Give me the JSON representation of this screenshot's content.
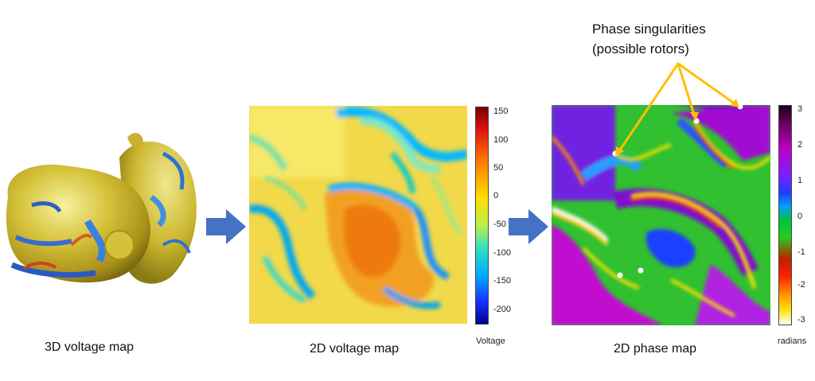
{
  "captions": {
    "voltage_3d": "3D voltage map",
    "voltage_2d": "2D voltage map",
    "phase_2d": "2D phase map"
  },
  "annotation": {
    "line1": "Phase singularities",
    "line2": "(possible rotors)"
  },
  "voltage_colorbar": {
    "ticks": [
      "150",
      "100",
      "50",
      "0",
      "-50",
      "-100",
      "-150",
      "-200"
    ],
    "unit": "Voltage"
  },
  "phase_colorbar": {
    "ticks": [
      "3",
      "2",
      "1",
      "0",
      "-1",
      "-2",
      "-3"
    ],
    "unit": "radians"
  },
  "colors": {
    "arrow": "#4472c4",
    "annotation_line": "#ffc000",
    "singularity_dot": "#ffffff"
  }
}
